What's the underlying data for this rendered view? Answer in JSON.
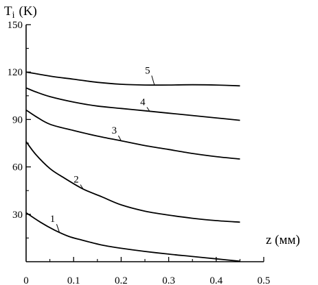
{
  "chart_data": {
    "type": "line",
    "title": "",
    "ylabel": "T",
    "ylabel_subscript": "i",
    "ylabel_unit": "(K)",
    "xlabel": "z (мм)",
    "xlim": [
      0,
      0.5
    ],
    "ylim": [
      0,
      150
    ],
    "x_ticks": [
      "0",
      "0.1",
      "0.2",
      "0.3",
      "0.4",
      "0.5"
    ],
    "x_tick_values": [
      0,
      0.1,
      0.2,
      0.3,
      0.4,
      0.5
    ],
    "y_ticks": [
      "30",
      "60",
      "90",
      "120",
      "150"
    ],
    "y_tick_values": [
      30,
      60,
      90,
      120,
      150
    ],
    "grid": false,
    "legend": "none",
    "series": [
      {
        "name": "1",
        "x": [
          0,
          0.03,
          0.06,
          0.09,
          0.12,
          0.16,
          0.2,
          0.25,
          0.3,
          0.35,
          0.4,
          0.45
        ],
        "y": [
          31,
          25,
          20,
          16,
          13.5,
          10.5,
          8.5,
          6.5,
          4.8,
          3.3,
          1.8,
          0.3
        ],
        "label_at": 0.07,
        "label_y": 19
      },
      {
        "name": "2",
        "x": [
          0,
          0.02,
          0.05,
          0.08,
          0.12,
          0.16,
          0.2,
          0.25,
          0.3,
          0.35,
          0.4,
          0.45
        ],
        "y": [
          76,
          68,
          59,
          53,
          46,
          41,
          36,
          32,
          29.5,
          27.5,
          26,
          25
        ],
        "label_at": 0.12,
        "label_y": 44
      },
      {
        "name": "3",
        "x": [
          0,
          0.02,
          0.05,
          0.1,
          0.15,
          0.2,
          0.25,
          0.3,
          0.35,
          0.4,
          0.45
        ],
        "y": [
          96,
          92,
          87,
          83,
          79.5,
          76.5,
          73.5,
          71,
          68.5,
          66.5,
          65
        ],
        "label_at": 0.2,
        "label_y": 75
      },
      {
        "name": "4",
        "x": [
          0,
          0.02,
          0.05,
          0.1,
          0.15,
          0.2,
          0.25,
          0.3,
          0.35,
          0.4,
          0.45
        ],
        "y": [
          110,
          107.5,
          104.5,
          101,
          98.5,
          97,
          95.5,
          94,
          92.5,
          91,
          89.5
        ],
        "label_at": 0.26,
        "label_y": 93
      },
      {
        "name": "5",
        "x": [
          0,
          0.03,
          0.06,
          0.1,
          0.15,
          0.2,
          0.25,
          0.3,
          0.35,
          0.4,
          0.45
        ],
        "y": [
          120,
          118.5,
          117,
          115.5,
          113.5,
          112.3,
          111.8,
          111.8,
          112,
          111.8,
          111.3
        ],
        "label_at": 0.27,
        "label_y": 113
      }
    ]
  }
}
